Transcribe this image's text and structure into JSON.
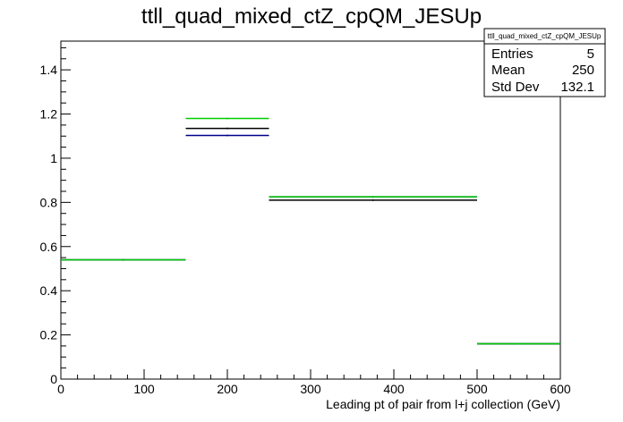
{
  "chart_data": {
    "type": "histogram",
    "title": "ttll_quad_mixed_ctZ_cpQM_JESUp",
    "xlabel": "Leading pt of pair from l+j collection (GeV)",
    "ylabel": "",
    "xlim": [
      0,
      600
    ],
    "ylim": [
      0,
      1.53
    ],
    "x_ticks": [
      "0",
      "100",
      "200",
      "300",
      "400",
      "500",
      "600"
    ],
    "y_ticks": [
      "0",
      "0.2",
      "0.4",
      "0.6",
      "0.8",
      "1",
      "1.2",
      "1.4"
    ],
    "bin_edges": [
      0,
      150,
      250,
      500,
      600
    ],
    "series": [
      {
        "color": "#000000",
        "values": [
          0.54,
          1.135,
          0.81,
          0.16
        ]
      },
      {
        "color": "#00008b",
        "values": [
          0.54,
          1.103,
          0.825,
          0.16
        ]
      },
      {
        "color": "#00cc00",
        "values": [
          0.54,
          1.18,
          0.825,
          0.16
        ]
      }
    ],
    "stats_box": {
      "title": "ttll_quad_mixed_ctZ_cpQM_JESUp",
      "rows": [
        {
          "label": "Entries",
          "value": "5"
        },
        {
          "label": "Mean",
          "value": "250"
        },
        {
          "label": "Std Dev",
          "value": "132.1"
        }
      ]
    },
    "grid": false,
    "legend": "none"
  }
}
